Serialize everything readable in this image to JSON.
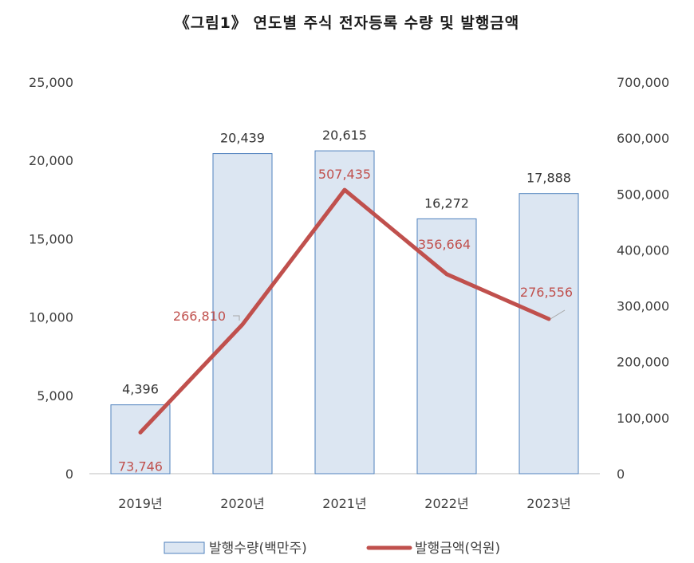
{
  "title": "《그림1》 연도별 주식 전자등록 수량 및 발행금액",
  "colors": {
    "bar_fill": "#dce6f2",
    "bar_stroke": "#4f81bd",
    "line": "#c0504d",
    "axis": "#bfbfbf"
  },
  "chart_data": {
    "type": "bar",
    "title": "《그림1》 연도별 주식 전자등록 수량 및 발행금액",
    "categories": [
      "2019년",
      "2020년",
      "2021년",
      "2022년",
      "2023년"
    ],
    "series": [
      {
        "name": "발행수량(백만주)",
        "type": "bar",
        "axis": "left",
        "values": [
          4396,
          20439,
          20615,
          16272,
          17888
        ],
        "labels": [
          "4,396",
          "20,439",
          "20,615",
          "16,272",
          "17,888"
        ]
      },
      {
        "name": "발행금액(억원)",
        "type": "line",
        "axis": "right",
        "values": [
          73746,
          266810,
          507435,
          356664,
          276556
        ],
        "labels": [
          "73,746",
          "266,810",
          "507,435",
          "356,664",
          "276,556"
        ]
      }
    ],
    "y_left": {
      "ylim": [
        0,
        25000
      ],
      "ticks": [
        "0",
        "5,000",
        "10,000",
        "15,000",
        "20,000",
        "25,000"
      ]
    },
    "y_right": {
      "ylim": [
        0,
        700000
      ],
      "ticks": [
        "0",
        "100,000",
        "200,000",
        "300,000",
        "400,000",
        "500,000",
        "600,000",
        "700,000"
      ]
    },
    "grid": false,
    "legend": "bottom"
  }
}
